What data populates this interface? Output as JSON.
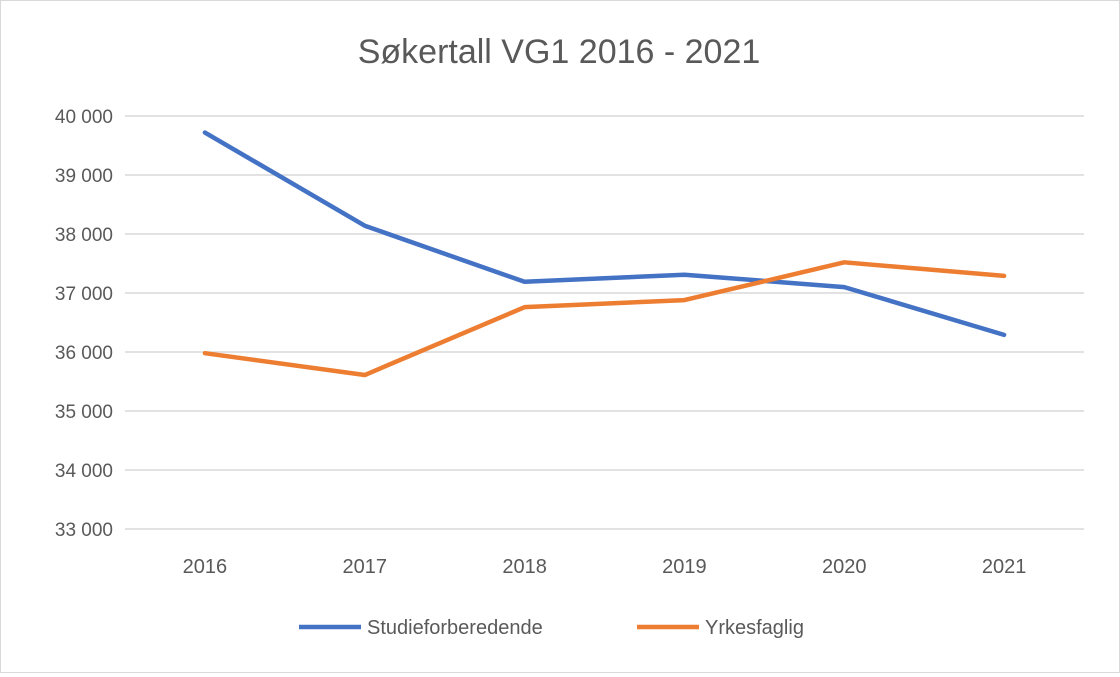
{
  "chart_data": {
    "type": "line",
    "title": "Søkertall VG1 2016 - 2021",
    "xlabel": "",
    "ylabel": "",
    "categories": [
      "2016",
      "2017",
      "2018",
      "2019",
      "2020",
      "2021"
    ],
    "ylim": [
      33000,
      40000
    ],
    "yticks": [
      33000,
      34000,
      35000,
      36000,
      37000,
      38000,
      39000,
      40000
    ],
    "ytick_labels": [
      "33 000",
      "34 000",
      "35 000",
      "36 000",
      "37 000",
      "38 000",
      "39 000",
      "40 000"
    ],
    "grid": "horizontal",
    "legend_position": "bottom",
    "series": [
      {
        "name": "Studieforberedende",
        "color": "#4472c4",
        "values": [
          39720,
          38140,
          37190,
          37310,
          37100,
          36290
        ]
      },
      {
        "name": "Yrkesfaglig",
        "color": "#ed7d31",
        "values": [
          35980,
          35610,
          36760,
          36880,
          37520,
          37290
        ]
      }
    ]
  }
}
